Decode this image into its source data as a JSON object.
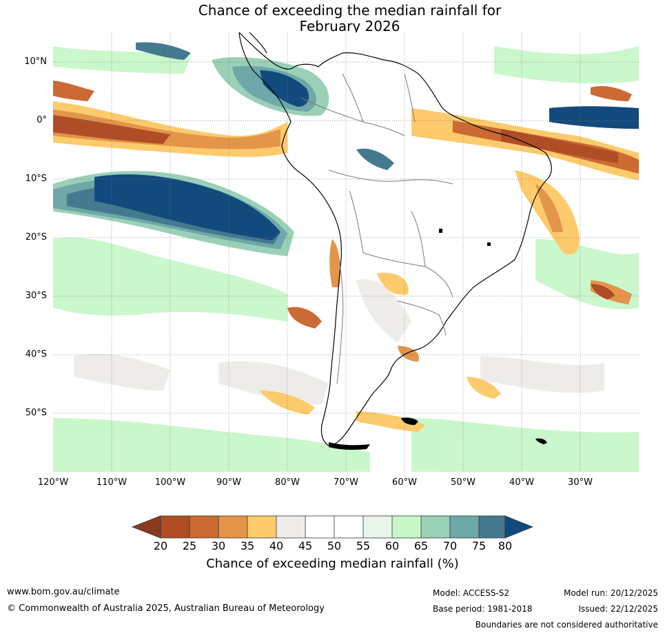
{
  "title_line1": "Chance of exceeding the median rainfall for",
  "title_line2": "February 2026",
  "map": {
    "lat_labels": [
      "10°N",
      "0°",
      "10°S",
      "20°S",
      "30°S",
      "40°S",
      "50°S"
    ],
    "lon_labels": [
      "120°W",
      "110°W",
      "100°W",
      "90°W",
      "80°W",
      "70°W",
      "60°W",
      "50°W",
      "40°W",
      "30°W"
    ],
    "colors": {
      "c20": "#8c3a1e",
      "c25": "#b04d27",
      "c30": "#cb6a33",
      "c35": "#e3954a",
      "c40": "#fdca6c",
      "c45": "#eeece8",
      "c55": "#e9f5ea",
      "c60": "#c7f7c9",
      "c65": "#9ad0b8",
      "c70": "#6ea8a8",
      "c75": "#45798f",
      "c80": "#134a7e",
      "ocean_neutral": "#ffffff"
    }
  },
  "colorbar": {
    "ticks": [
      "20",
      "25",
      "30",
      "35",
      "40",
      "45",
      "50",
      "55",
      "60",
      "65",
      "70",
      "75",
      "80"
    ],
    "label": "Chance of exceeding median rainfall (%)"
  },
  "footer": {
    "url": "www.bom.gov.au/climate",
    "copyright": "© Commonwealth of Australia 2025, Australian Bureau of Meteorology",
    "model": "Model: ACCESS-S2",
    "base_period": "Base period: 1981-2018",
    "model_run": "Model run: 20/12/2025",
    "issued": "Issued: 22/12/2025",
    "boundaries": "Boundaries are not considered authoritative"
  }
}
